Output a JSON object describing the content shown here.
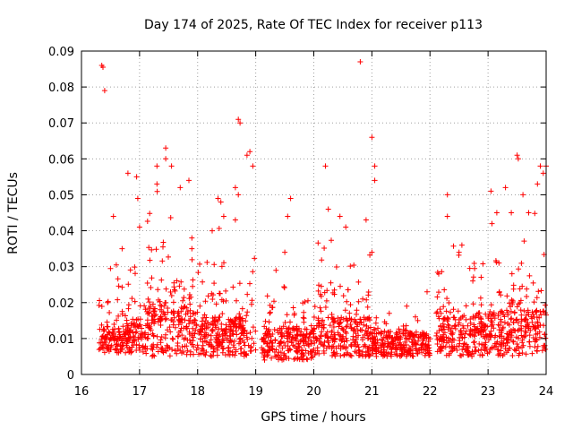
{
  "chart_data": {
    "type": "scatter",
    "title": "Day 174 of 2025, Rate Of TEC Index for receiver p113",
    "xlabel": "GPS time / hours",
    "ylabel": "ROTI / TECUs",
    "xlim": [
      16,
      24
    ],
    "ylim": [
      0,
      0.09
    ],
    "xticks": [
      16,
      17,
      18,
      19,
      20,
      21,
      22,
      23,
      24
    ],
    "yticks": [
      0,
      0.01,
      0.02,
      0.03,
      0.04,
      0.05,
      0.06,
      0.07,
      0.08,
      0.09
    ],
    "xtick_labels": [
      "16",
      "17",
      "18",
      "19",
      "20",
      "21",
      "22",
      "23",
      "24"
    ],
    "ytick_labels": [
      "0",
      "0.01",
      "0.02",
      "0.03",
      "0.04",
      "0.05",
      "0.06",
      "0.07",
      "0.08",
      "0.09"
    ],
    "grid": true,
    "marker": "+",
    "color": "#ff0000",
    "series": [
      {
        "name": "ROTI",
        "points": [
          [
            16.35,
            0.086
          ],
          [
            16.37,
            0.0855
          ],
          [
            16.4,
            0.079
          ],
          [
            16.55,
            0.044
          ],
          [
            16.6,
            0.0305
          ],
          [
            16.5,
            0.0295
          ],
          [
            16.45,
            0.02
          ],
          [
            16.7,
            0.035
          ],
          [
            16.8,
            0.056
          ],
          [
            16.95,
            0.055
          ],
          [
            16.97,
            0.049
          ],
          [
            17.0,
            0.041
          ],
          [
            17.3,
            0.058
          ],
          [
            17.3,
            0.053
          ],
          [
            17.45,
            0.063
          ],
          [
            17.45,
            0.06
          ],
          [
            17.55,
            0.058
          ],
          [
            17.7,
            0.052
          ],
          [
            17.85,
            0.054
          ],
          [
            17.9,
            0.038
          ],
          [
            17.9,
            0.035
          ],
          [
            18.25,
            0.04
          ],
          [
            18.35,
            0.049
          ],
          [
            18.4,
            0.048
          ],
          [
            18.45,
            0.044
          ],
          [
            18.7,
            0.071
          ],
          [
            18.73,
            0.07
          ],
          [
            18.65,
            0.052
          ],
          [
            18.7,
            0.05
          ],
          [
            18.65,
            0.043
          ],
          [
            18.85,
            0.061
          ],
          [
            18.9,
            0.062
          ],
          [
            18.95,
            0.058
          ],
          [
            19.6,
            0.049
          ],
          [
            19.55,
            0.044
          ],
          [
            19.5,
            0.034
          ],
          [
            19.35,
            0.029
          ],
          [
            20.2,
            0.058
          ],
          [
            20.25,
            0.046
          ],
          [
            20.45,
            0.044
          ],
          [
            20.55,
            0.041
          ],
          [
            20.8,
            0.087
          ],
          [
            21.0,
            0.066
          ],
          [
            21.05,
            0.058
          ],
          [
            21.05,
            0.054
          ],
          [
            20.9,
            0.043
          ],
          [
            21.0,
            0.034
          ],
          [
            21.3,
            0.017
          ],
          [
            21.6,
            0.019
          ],
          [
            21.75,
            0.016
          ],
          [
            21.95,
            0.023
          ],
          [
            22.15,
            0.028
          ],
          [
            22.3,
            0.05
          ],
          [
            22.3,
            0.044
          ],
          [
            22.5,
            0.034
          ],
          [
            22.55,
            0.036
          ],
          [
            23.05,
            0.051
          ],
          [
            23.15,
            0.045
          ],
          [
            23.3,
            0.052
          ],
          [
            23.4,
            0.045
          ],
          [
            23.5,
            0.061
          ],
          [
            23.52,
            0.06
          ],
          [
            23.6,
            0.05
          ],
          [
            23.7,
            0.045
          ],
          [
            23.85,
            0.053
          ],
          [
            23.9,
            0.058
          ],
          [
            23.95,
            0.056
          ],
          [
            24.0,
            0.058
          ]
        ]
      }
    ],
    "density_profile": [
      {
        "from": 16.3,
        "to": 16.8,
        "base_min": 0.006,
        "base_max": 0.013,
        "spread": 0.018
      },
      {
        "from": 16.8,
        "to": 17.1,
        "base_min": 0.006,
        "base_max": 0.014,
        "spread": 0.028
      },
      {
        "from": 17.1,
        "to": 18.0,
        "base_min": 0.005,
        "base_max": 0.02,
        "spread": 0.035
      },
      {
        "from": 18.0,
        "to": 19.0,
        "base_min": 0.005,
        "base_max": 0.016,
        "spread": 0.03
      },
      {
        "from": 19.1,
        "to": 20.0,
        "base_min": 0.004,
        "base_max": 0.013,
        "spread": 0.02
      },
      {
        "from": 20.0,
        "to": 21.0,
        "base_min": 0.005,
        "base_max": 0.016,
        "spread": 0.03
      },
      {
        "from": 21.0,
        "to": 22.0,
        "base_min": 0.005,
        "base_max": 0.012,
        "spread": 0.008
      },
      {
        "from": 22.1,
        "to": 23.0,
        "base_min": 0.005,
        "base_max": 0.016,
        "spread": 0.025
      },
      {
        "from": 23.0,
        "to": 24.0,
        "base_min": 0.005,
        "base_max": 0.018,
        "spread": 0.035
      }
    ]
  }
}
